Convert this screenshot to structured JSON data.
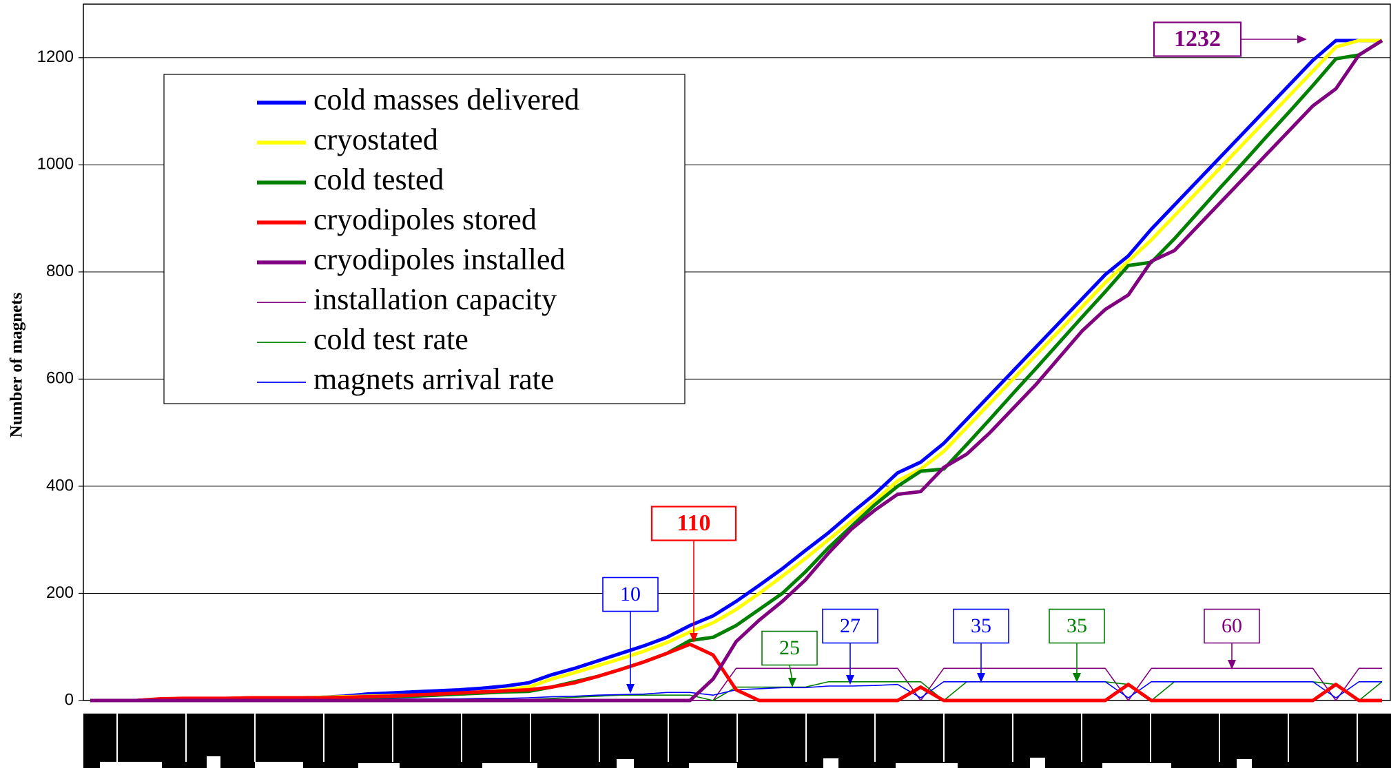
{
  "chart_data": {
    "type": "line",
    "ylabel": "Number of magnets",
    "ylim": [
      0,
      1300
    ],
    "yticks": [
      0,
      200,
      400,
      600,
      800,
      1000,
      1200
    ],
    "grid": true,
    "categories": [
      null,
      null,
      null,
      null,
      null,
      null,
      null,
      null,
      null,
      null,
      null,
      null,
      null,
      null,
      null,
      null,
      null,
      null,
      null,
      null,
      null,
      null,
      null,
      null,
      null,
      null,
      null,
      null,
      null,
      null,
      null,
      null,
      null,
      null,
      null,
      null,
      null,
      null,
      null,
      null,
      null,
      null,
      null,
      null,
      null,
      null,
      null,
      null,
      null,
      null,
      null,
      null,
      null,
      null,
      null,
      null,
      null
    ],
    "series": [
      {
        "name": "cold masses delivered",
        "color": "#0000ff",
        "linewidth": 5,
        "values": [
          0,
          0,
          0,
          2,
          3,
          3,
          4,
          5,
          5,
          5,
          6,
          8,
          12,
          14,
          16,
          18,
          20,
          23,
          27,
          33,
          48,
          60,
          74,
          88,
          102,
          118,
          140,
          158,
          185,
          215,
          246,
          280,
          313,
          350,
          385,
          425,
          445,
          480,
          525,
          570,
          615,
          660,
          705,
          750,
          795,
          830,
          880,
          925,
          970,
          1015,
          1060,
          1105,
          1150,
          1195,
          1232,
          1232,
          1232
        ]
      },
      {
        "name": "cryostated",
        "color": "#ffff00",
        "linewidth": 5,
        "values": [
          0,
          0,
          0,
          1,
          2,
          3,
          4,
          5,
          5,
          5,
          6,
          7,
          8,
          9,
          10,
          11,
          12,
          15,
          20,
          25,
          40,
          52,
          65,
          78,
          92,
          108,
          128,
          145,
          170,
          200,
          232,
          265,
          300,
          335,
          372,
          410,
          432,
          465,
          510,
          555,
          600,
          645,
          690,
          735,
          780,
          820,
          860,
          905,
          950,
          995,
          1040,
          1085,
          1130,
          1175,
          1220,
          1232,
          1232
        ]
      },
      {
        "name": "cold tested",
        "color": "#008000",
        "linewidth": 5,
        "values": [
          0,
          0,
          0,
          1,
          2,
          2,
          3,
          4,
          4,
          4,
          5,
          5,
          6,
          7,
          8,
          10,
          12,
          14,
          16,
          17,
          25,
          35,
          45,
          58,
          72,
          88,
          112,
          118,
          140,
          170,
          200,
          240,
          285,
          325,
          365,
          400,
          428,
          432,
          478,
          525,
          573,
          620,
          668,
          716,
          763,
          812,
          818,
          862,
          910,
          958,
          1005,
          1053,
          1100,
          1148,
          1198,
          1205,
          1232
        ]
      },
      {
        "name": "cryodipoles stored",
        "color": "#ff0000",
        "linewidth": 5,
        "values": [
          0,
          0,
          0,
          3,
          4,
          4,
          4,
          5,
          5,
          5,
          5,
          6,
          7,
          8,
          10,
          12,
          14,
          16,
          18,
          20,
          25,
          33,
          45,
          58,
          72,
          88,
          105,
          85,
          20,
          0,
          0,
          0,
          0,
          0,
          0,
          0,
          25,
          0,
          0,
          0,
          0,
          0,
          0,
          0,
          0,
          30,
          0,
          0,
          0,
          0,
          0,
          0,
          0,
          0,
          30,
          0,
          0
        ]
      },
      {
        "name": "cryodipoles installed",
        "color": "#800080",
        "linewidth": 5,
        "values": [
          0,
          0,
          0,
          0,
          0,
          0,
          0,
          0,
          0,
          0,
          0,
          0,
          0,
          0,
          0,
          0,
          0,
          0,
          0,
          0,
          0,
          0,
          0,
          0,
          0,
          0,
          0,
          40,
          110,
          150,
          185,
          225,
          275,
          320,
          355,
          385,
          390,
          435,
          460,
          500,
          545,
          590,
          640,
          690,
          730,
          757,
          820,
          840,
          885,
          930,
          975,
          1020,
          1065,
          1110,
          1142,
          1205,
          1232
        ]
      },
      {
        "name": "installation capacity",
        "color": "#800080",
        "linewidth": 1.6,
        "values": [
          0,
          0,
          0,
          0,
          0,
          0,
          0,
          0,
          0,
          0,
          0,
          0,
          0,
          0,
          0,
          0,
          0,
          0,
          0,
          0,
          0,
          0,
          0,
          0,
          0,
          0,
          0,
          0,
          60,
          60,
          60,
          60,
          60,
          60,
          60,
          60,
          0,
          60,
          60,
          60,
          60,
          60,
          60,
          60,
          60,
          0,
          60,
          60,
          60,
          60,
          60,
          60,
          60,
          60,
          0,
          60,
          60
        ]
      },
      {
        "name": "cold test rate",
        "color": "#008000",
        "linewidth": 1.6,
        "values": [
          0,
          0,
          0,
          0,
          0,
          0,
          0,
          0,
          0,
          0,
          0,
          0,
          0,
          0,
          0,
          0,
          0,
          0,
          0,
          2,
          4,
          6,
          8,
          10,
          10,
          10,
          10,
          0,
          25,
          25,
          25,
          25,
          35,
          35,
          35,
          35,
          35,
          0,
          35,
          35,
          35,
          35,
          35,
          35,
          35,
          30,
          0,
          35,
          35,
          35,
          35,
          35,
          35,
          35,
          30,
          0,
          35
        ]
      },
      {
        "name": "magnets arrival rate",
        "color": "#0000ff",
        "linewidth": 1.6,
        "values": [
          0,
          0,
          0,
          1,
          1,
          1,
          1,
          2,
          2,
          2,
          2,
          3,
          3,
          3,
          3,
          3,
          3,
          4,
          4,
          5,
          7,
          8,
          10,
          11,
          12,
          15,
          15,
          10,
          20,
          22,
          24,
          24,
          27,
          27,
          28,
          30,
          5,
          35,
          35,
          35,
          35,
          35,
          35,
          35,
          35,
          5,
          35,
          35,
          35,
          35,
          35,
          35,
          35,
          35,
          5,
          35,
          35
        ]
      }
    ],
    "annotations": [
      {
        "text": "10",
        "color": "#0000ff",
        "bold": false
      },
      {
        "text": "110",
        "color": "#ff0000",
        "bold": true
      },
      {
        "text": "25",
        "color": "#008000",
        "bold": false
      },
      {
        "text": "27",
        "color": "#0000ff",
        "bold": false
      },
      {
        "text": "35",
        "color": "#0000ff",
        "bold": false
      },
      {
        "text": "35",
        "color": "#008000",
        "bold": false
      },
      {
        "text": "60",
        "color": "#800080",
        "bold": false
      },
      {
        "text": "1232",
        "color": "#800080",
        "bold": true
      }
    ]
  }
}
